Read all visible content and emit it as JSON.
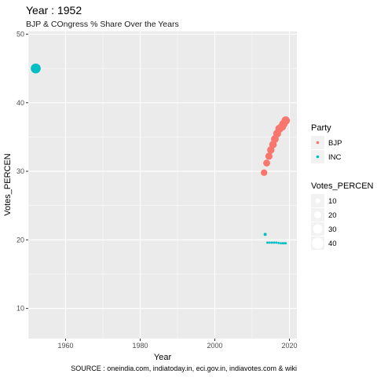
{
  "chart_data": {
    "type": "scatter",
    "title": "Year : 1952",
    "subtitle": "BJP & COngress  % Share Over the Years",
    "xlabel": "Year",
    "ylabel": "Votes_PERCEN",
    "caption": "SOURCE : oneindia.com, indiatoday.in, eci.gov.in, indiavotes.com & wiki",
    "xlim": [
      1950,
      2022
    ],
    "ylim": [
      5.6,
      50.4
    ],
    "xticks": [
      1960,
      1980,
      2000,
      2020
    ],
    "yticks": [
      10,
      20,
      30,
      40,
      50
    ],
    "grid": true,
    "legend_placement": "right",
    "series": [
      {
        "name": "BJP",
        "color": "#F8766D",
        "points": [
          {
            "x": 2013.2,
            "y": 29.8,
            "size": 29.8
          },
          {
            "x": 2013.9,
            "y": 31.2,
            "size": 31.2
          },
          {
            "x": 2014.5,
            "y": 32.2,
            "size": 32.2
          },
          {
            "x": 2015.0,
            "y": 33.1,
            "size": 33.1
          },
          {
            "x": 2015.6,
            "y": 33.9,
            "size": 33.9
          },
          {
            "x": 2016.1,
            "y": 34.7,
            "size": 34.7
          },
          {
            "x": 2016.7,
            "y": 35.5,
            "size": 35.5
          },
          {
            "x": 2017.3,
            "y": 36.2,
            "size": 36.2
          },
          {
            "x": 2018.0,
            "y": 36.5,
            "size": 36.5
          },
          {
            "x": 2018.4,
            "y": 36.9,
            "size": 36.9
          },
          {
            "x": 2019.0,
            "y": 37.4,
            "size": 37.4
          }
        ]
      },
      {
        "name": "INC",
        "color": "#00BFC4",
        "points": [
          {
            "x": 1952,
            "y": 45.0,
            "size": 45.0
          },
          {
            "x": 2013.5,
            "y": 20.8,
            "size": 20.8
          },
          {
            "x": 2014.1,
            "y": 19.6,
            "size": 19.6
          },
          {
            "x": 2014.7,
            "y": 19.6,
            "size": 19.6
          },
          {
            "x": 2015.3,
            "y": 19.6,
            "size": 19.6
          },
          {
            "x": 2015.9,
            "y": 19.6,
            "size": 19.6
          },
          {
            "x": 2016.5,
            "y": 19.6,
            "size": 19.6
          },
          {
            "x": 2017.1,
            "y": 19.55,
            "size": 19.55
          },
          {
            "x": 2017.7,
            "y": 19.5,
            "size": 19.5
          },
          {
            "x": 2018.2,
            "y": 19.5,
            "size": 19.5
          },
          {
            "x": 2018.6,
            "y": 19.5,
            "size": 19.5
          },
          {
            "x": 2019.0,
            "y": 19.5,
            "size": 19.5
          }
        ]
      }
    ],
    "legend": {
      "color_title": "Party",
      "color_items": [
        "BJP",
        "INC"
      ],
      "size_title": "Votes_PERCEN",
      "size_items": [
        10,
        20,
        30,
        40
      ]
    }
  },
  "colors": {
    "panel_background": "#EBEBEB",
    "grid_major": "#FFFFFF",
    "bjp": "#F8766D",
    "inc": "#00BFC4"
  }
}
